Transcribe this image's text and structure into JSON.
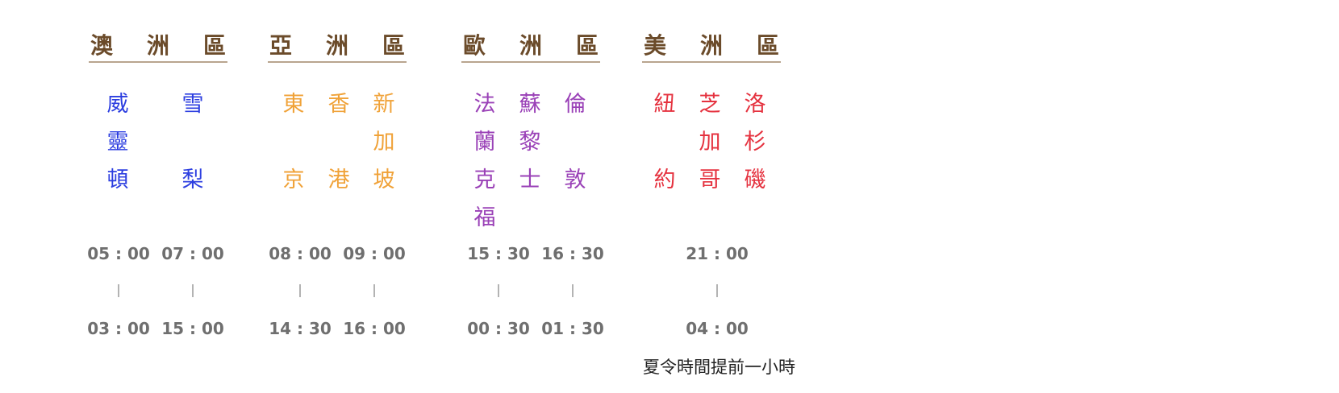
{
  "regions": [
    {
      "title": [
        "澳",
        "洲",
        "區"
      ],
      "color": "#2c3ee0",
      "cities": [
        {
          "chars": [
            "威",
            "靈",
            "頓"
          ]
        },
        {
          "chars": [
            "雪",
            "",
            "梨"
          ]
        }
      ],
      "times_top": [
        "05 : 00",
        "07 : 00"
      ],
      "times_bottom": [
        "03 : 00",
        "15 : 00"
      ]
    },
    {
      "title": [
        "亞",
        "洲",
        "區"
      ],
      "color": "#f0a238",
      "cities": [
        {
          "chars": [
            "東",
            "",
            "京"
          ]
        },
        {
          "chars": [
            "香",
            "",
            "港"
          ]
        },
        {
          "chars": [
            "新",
            "加",
            "坡"
          ]
        }
      ],
      "times_top": [
        "08 : 00",
        "09 : 00"
      ],
      "times_bottom": [
        "14 : 30",
        "16 : 00"
      ]
    },
    {
      "title": [
        "歐",
        "洲",
        "區"
      ],
      "color": "#9a41b7",
      "cities": [
        {
          "chars": [
            "法",
            "蘭",
            "克",
            "福"
          ]
        },
        {
          "chars": [
            "蘇",
            "黎",
            "士"
          ]
        },
        {
          "chars": [
            "倫",
            "",
            "敦"
          ]
        }
      ],
      "times_top": [
        "15 : 30",
        "16 : 30"
      ],
      "times_bottom": [
        "00 : 30",
        "01 : 30"
      ]
    },
    {
      "title": [
        "美",
        "洲",
        "區"
      ],
      "color": "#e5323f",
      "cities": [
        {
          "chars": [
            "紐",
            "",
            "約"
          ]
        },
        {
          "chars": [
            "芝",
            "加",
            "哥"
          ]
        },
        {
          "chars": [
            "洛",
            "杉",
            "磯"
          ]
        }
      ],
      "times_top": [
        "21 : 00"
      ],
      "times_bottom": [
        "04 : 00"
      ]
    }
  ],
  "note": "夏令時間提前一小時"
}
